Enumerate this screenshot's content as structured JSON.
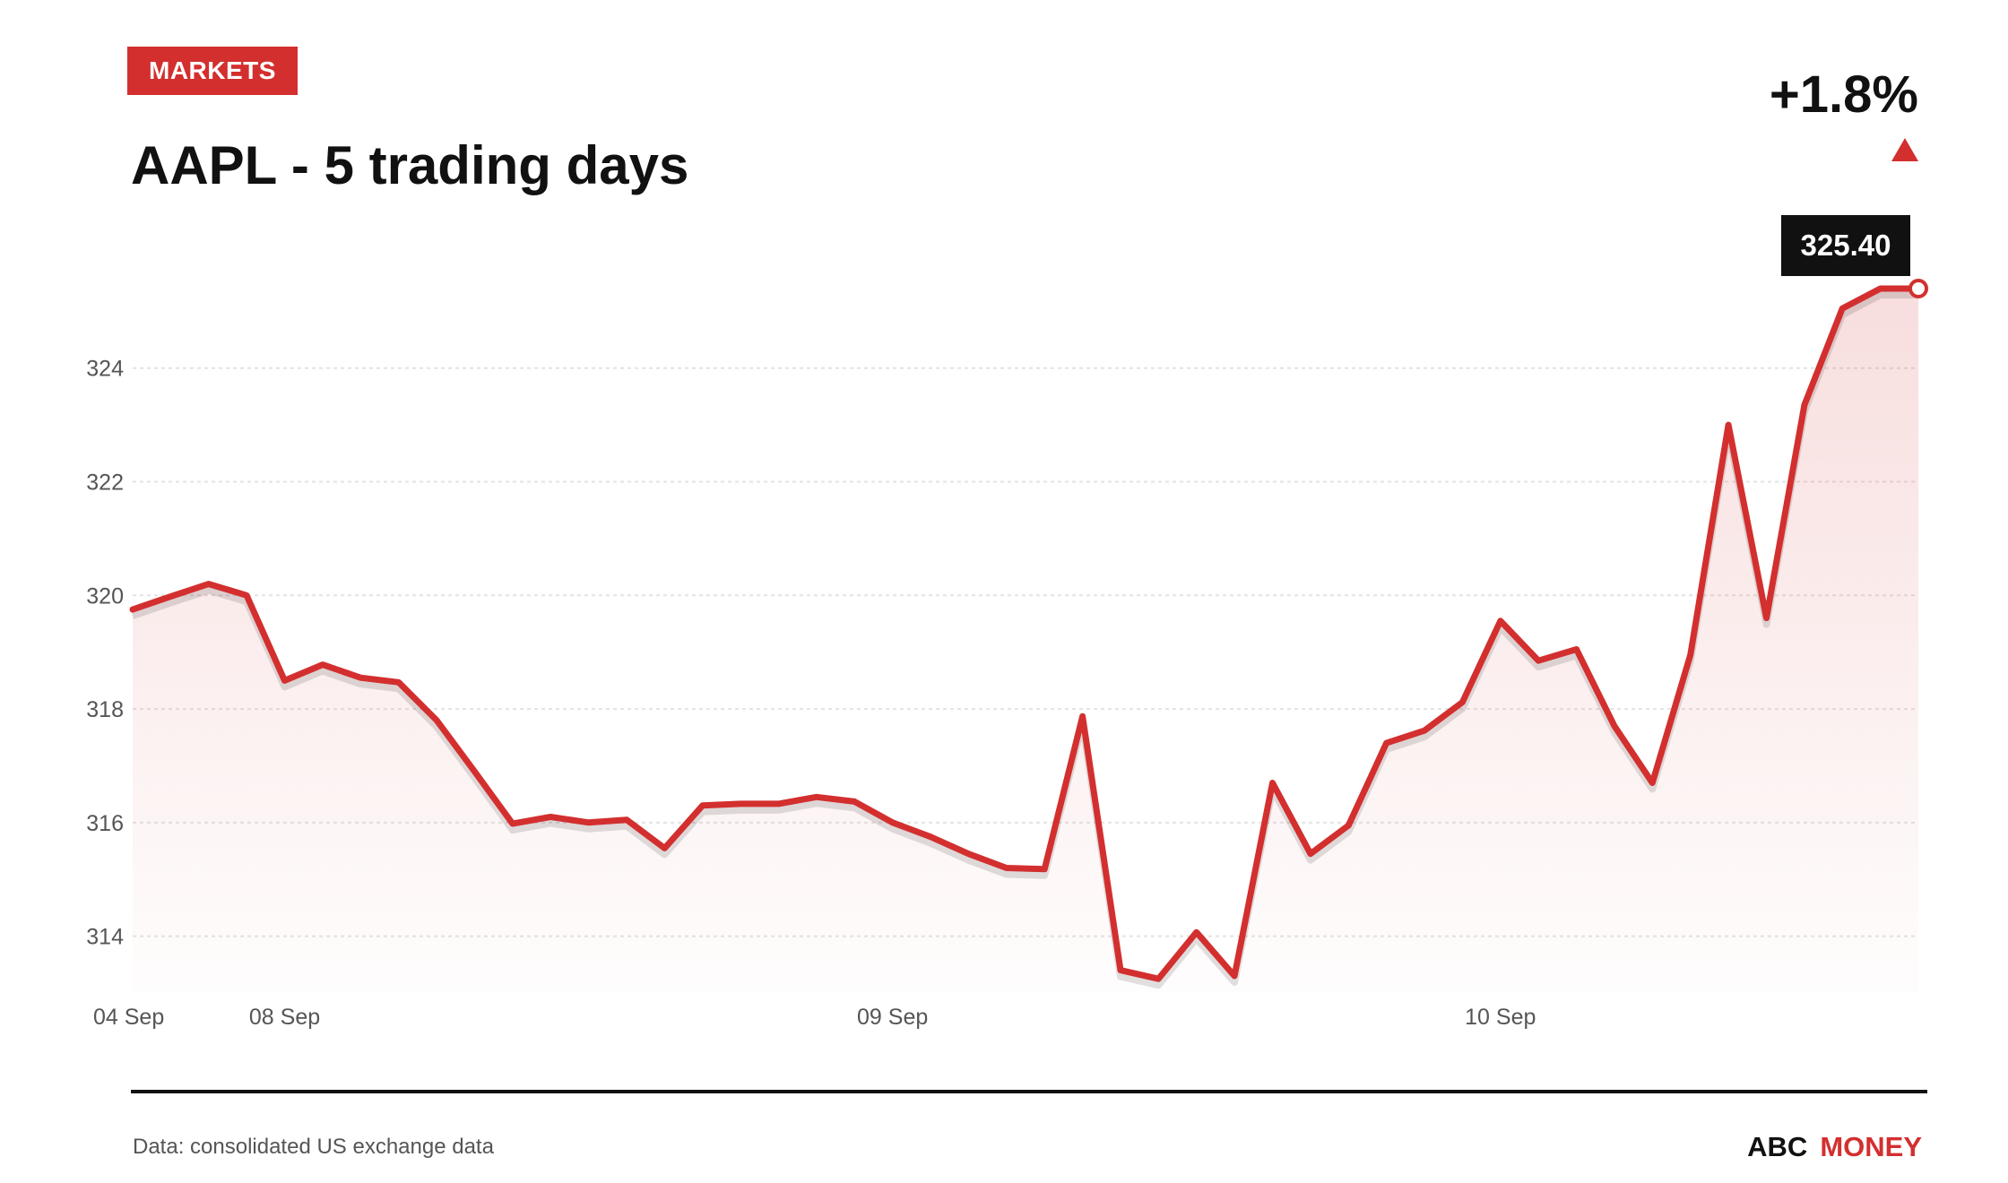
{
  "header": {
    "tag": "MARKETS",
    "title": "AAPL - 5 trading days",
    "change": "+1.8%"
  },
  "footer": {
    "source": "Data: consolidated US exchange data",
    "brand_primary": "ABC",
    "brand_secondary": "MONEY"
  },
  "colors": {
    "accent": "#d32f2f",
    "text": "#111111",
    "muted": "#555555",
    "grid": "#e3e3e3"
  },
  "icons": {
    "change_direction": "up-triangle-icon"
  },
  "chart_data": {
    "type": "area",
    "title": "AAPL - 5 trading days",
    "xlabel": "",
    "ylabel": "",
    "ylim": [
      313,
      325.4
    ],
    "yticks": [
      314,
      316,
      318,
      320,
      322,
      324
    ],
    "grid": true,
    "legend": "none",
    "last_value_label": "325.40",
    "x_tick_labels": [
      {
        "index": 0,
        "label": "04 Sep"
      },
      {
        "index": 4,
        "label": "08 Sep"
      },
      {
        "index": 20,
        "label": "09 Sep"
      },
      {
        "index": 36,
        "label": "10 Sep"
      }
    ],
    "series": [
      {
        "values": [
          319.75,
          319.98,
          320.2,
          320.0,
          318.5,
          318.78,
          318.55,
          318.47,
          317.8,
          316.9,
          315.98,
          316.1,
          316.0,
          316.05,
          315.55,
          316.3,
          316.33,
          316.33,
          316.45,
          316.37,
          316.0,
          315.75,
          315.45,
          315.2,
          315.18,
          317.87,
          313.4,
          313.25,
          314.07,
          313.3,
          316.7,
          315.45,
          315.95,
          317.4,
          317.62,
          318.12,
          319.55,
          318.85,
          319.05,
          317.7,
          316.7,
          318.95,
          323.0,
          319.6,
          323.35,
          325.05,
          325.4,
          325.4
        ]
      }
    ]
  }
}
